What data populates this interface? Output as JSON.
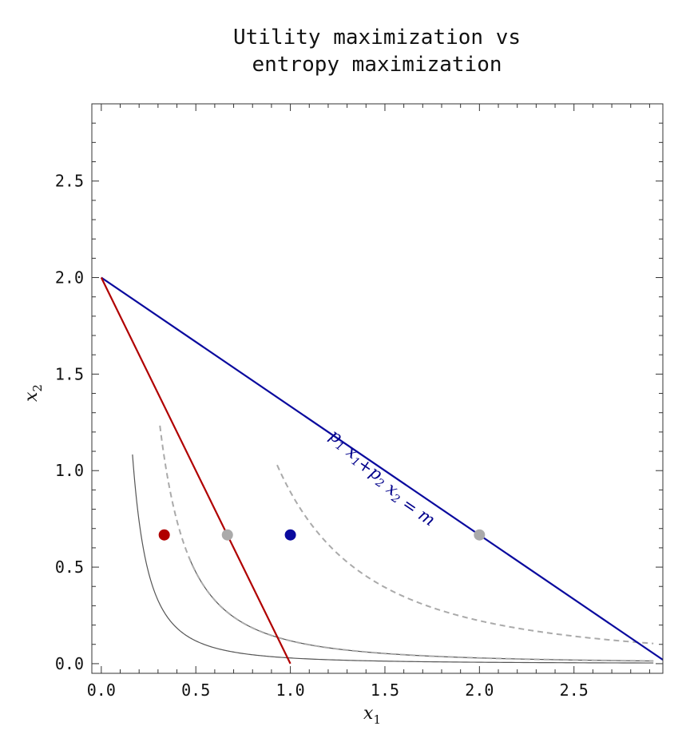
{
  "chart_data": {
    "type": "line",
    "title_lines": [
      "Utility maximization vs",
      "entropy maximization"
    ],
    "xlabel": "x",
    "xlabel_sub": "1",
    "ylabel": "x",
    "ylabel_sub": "2",
    "xlim": [
      -0.05,
      2.97
    ],
    "ylim": [
      -0.05,
      2.9
    ],
    "x_ticks": [
      0.0,
      0.5,
      1.0,
      1.5,
      2.0,
      2.5
    ],
    "x_tick_labels": [
      "0.0",
      "0.5",
      "1.0",
      "1.5",
      "2.0",
      "2.5"
    ],
    "y_ticks": [
      0.0,
      0.5,
      1.0,
      1.5,
      2.0,
      2.5
    ],
    "y_tick_labels": [
      "0.0",
      "0.5",
      "1.0",
      "1.5",
      "2.0",
      "2.5"
    ],
    "grid": false,
    "colors": {
      "budget_blue": "#0a0a9e",
      "budget_red": "#b00000",
      "solid_curve": "#555555",
      "dashed_curve": "#aaaaaa",
      "point_gray": "#aaaaaa"
    },
    "series": [
      {
        "kind": "solid",
        "style": "indifference",
        "k": 0.0295,
        "x_start": 0.165,
        "x_end": 2.92
      },
      {
        "kind": "solid",
        "style": "indifference",
        "k": 0.1185,
        "x_start": 0.47,
        "x_end": 2.92
      },
      {
        "kind": "dashed",
        "style": "indifference",
        "k": 0.1185,
        "x_start": 0.31,
        "x_end": 2.92
      },
      {
        "kind": "dashed",
        "style": "indifference",
        "k": 0.89,
        "x_start": 0.93,
        "x_end": 2.92
      },
      {
        "kind": "budget",
        "color_key": "budget_blue",
        "points": [
          [
            0,
            2.0
          ],
          [
            3.0,
            0.0
          ]
        ]
      },
      {
        "kind": "budget",
        "color_key": "budget_red",
        "points": [
          [
            0,
            2.0
          ],
          [
            1.0,
            0.0
          ]
        ]
      }
    ],
    "points": [
      {
        "x": 0.333,
        "y": 0.667,
        "color_key": "budget_red"
      },
      {
        "x": 0.667,
        "y": 0.667,
        "color_key": "point_gray"
      },
      {
        "x": 1.0,
        "y": 0.667,
        "color_key": "budget_blue"
      },
      {
        "x": 2.0,
        "y": 0.667,
        "color_key": "point_gray"
      }
    ],
    "annotation": {
      "parts": [
        {
          "text": "p",
          "sub": "1"
        },
        {
          "text": " x",
          "sub": "1"
        },
        {
          "text": "+",
          "sub": ""
        },
        {
          "text": "p",
          "sub": "2"
        },
        {
          "text": " x",
          "sub": "2"
        },
        {
          "text": "  =  m",
          "sub": ""
        }
      ],
      "x": 1.2,
      "y": 1.17
    }
  }
}
